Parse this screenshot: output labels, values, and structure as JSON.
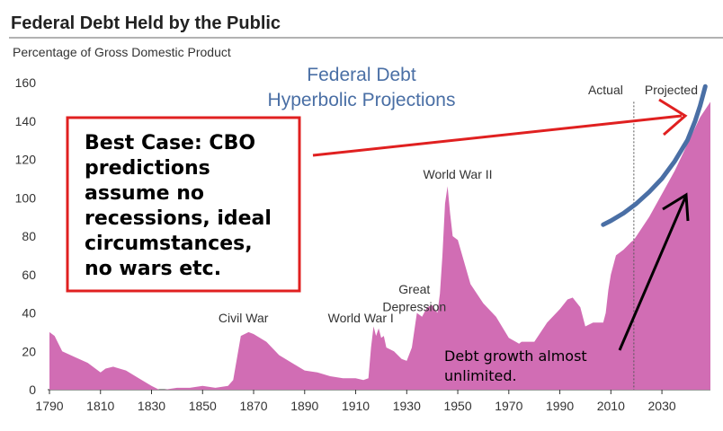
{
  "chart_data": {
    "type": "area",
    "title": "Federal Debt Held by the Public",
    "subtitle": "Percentage of Gross Domestic Product",
    "xlim": [
      1790,
      2049
    ],
    "ylim": [
      0,
      160
    ],
    "x_ticks": [
      "1790",
      "1810",
      "1830",
      "1850",
      "1870",
      "1890",
      "1910",
      "1930",
      "1950",
      "1970",
      "1990",
      "2010",
      "2030"
    ],
    "y_ticks": [
      "0",
      "20",
      "40",
      "60",
      "80",
      "100",
      "120",
      "140",
      "160"
    ],
    "fill_color": "#d16db4",
    "actual_projected_split": 2019,
    "labels": {
      "actual": "Actual",
      "projected": "Projected"
    },
    "series": [
      {
        "x": [
          1790,
          1792,
          1795,
          1800,
          1805,
          1810,
          1812,
          1815,
          1820,
          1825,
          1830,
          1833,
          1835,
          1840,
          1845,
          1850,
          1855,
          1860,
          1862,
          1865,
          1868,
          1870,
          1875,
          1880,
          1885,
          1890,
          1895,
          1900,
          1905,
          1910,
          1913,
          1915,
          1916,
          1917,
          1918,
          1919,
          1920,
          1921,
          1922,
          1925,
          1928,
          1930,
          1932,
          1934,
          1936,
          1938,
          1940,
          1942,
          1943,
          1944,
          1945,
          1946,
          1947,
          1948,
          1950,
          1955,
          1960,
          1965,
          1970,
          1974,
          1975,
          1980,
          1985,
          1990,
          1993,
          1995,
          1998,
          2000,
          2003,
          2005,
          2007,
          2008,
          2009,
          2010,
          2012,
          2015,
          2018,
          2019,
          2020,
          2025,
          2030,
          2035,
          2040,
          2045,
          2049
        ],
        "values": [
          30,
          28,
          20,
          17,
          14,
          9,
          11,
          12,
          10,
          6,
          2,
          0,
          0,
          1,
          1,
          2,
          1,
          2,
          5,
          28,
          30,
          29,
          25,
          18,
          14,
          10,
          9,
          7,
          6,
          6,
          5,
          6,
          22,
          33,
          28,
          32,
          27,
          28,
          22,
          20,
          16,
          15,
          22,
          40,
          38,
          43,
          44,
          40,
          50,
          70,
          97,
          106,
          92,
          80,
          78,
          55,
          45,
          38,
          27,
          24,
          25,
          25,
          35,
          42,
          47,
          48,
          43,
          33,
          35,
          35,
          35,
          40,
          52,
          60,
          70,
          73,
          77,
          78,
          80,
          90,
          102,
          114,
          128,
          142,
          150
        ]
      }
    ],
    "annotations": [
      {
        "label": "Civil War",
        "x": 1866,
        "y": 35
      },
      {
        "label": "World War I",
        "x": 1912,
        "y": 35
      },
      {
        "label": "Great",
        "x": 1933,
        "y": 50
      },
      {
        "label": "Depression",
        "x": 1933,
        "y": 41
      },
      {
        "label": "World War II",
        "x": 1950,
        "y": 110
      }
    ],
    "overlay": {
      "title_lines": [
        "Federal Debt",
        "Hyperbolic Projections"
      ],
      "box_lines": [
        "Best Case: CBO",
        "predictions",
        "assume no",
        "recessions, ideal",
        "circumstances,",
        "no wars etc."
      ],
      "growth_lines": [
        "Debt growth almost",
        "unlimited."
      ],
      "curve_x": [
        2007,
        2010,
        2015,
        2020,
        2025,
        2030,
        2035,
        2040,
        2043,
        2045,
        2047
      ],
      "curve_y": [
        86,
        88,
        92,
        97,
        103,
        110,
        119,
        130,
        140,
        148,
        158
      ],
      "colors": {
        "box": "#e02020",
        "curve": "#4a6fa5",
        "arrow": "#e02020",
        "text_arrow": "#000000"
      }
    }
  }
}
